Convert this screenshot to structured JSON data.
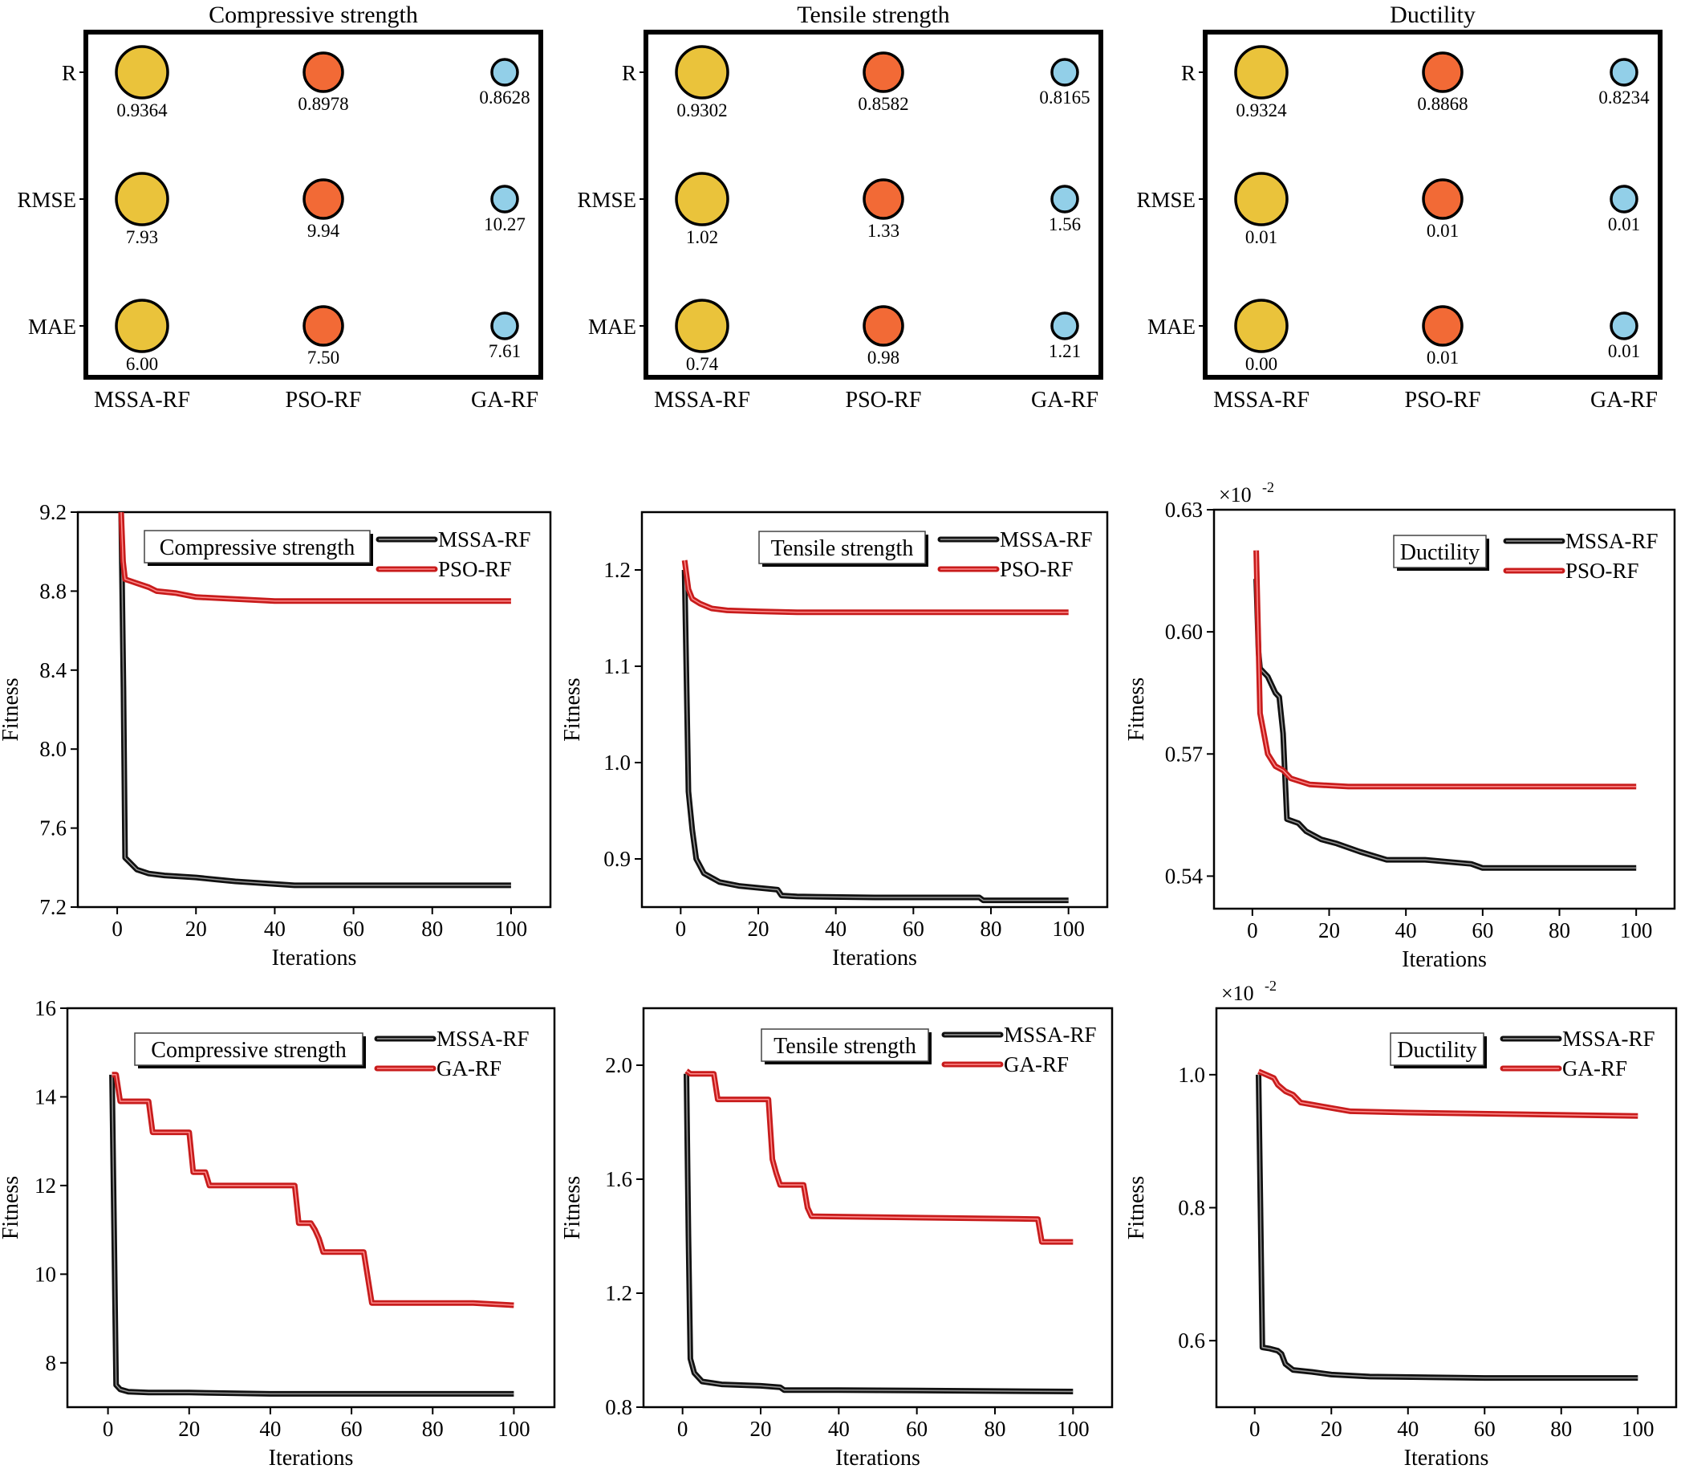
{
  "colors": {
    "mssa": "#EAC33B",
    "pso": "#F26A36",
    "ga": "#92CFE8",
    "black_line": "#000000",
    "red_line": "#D42020"
  },
  "chart_data": [
    {
      "type": "bubble",
      "title": "Compressive strength",
      "rows": [
        "R",
        "RMSE",
        "MAE"
      ],
      "columns": [
        "MSSA-RF",
        "PSO-RF",
        "GA-RF"
      ],
      "labels": [
        [
          "0.9364",
          "0.8978",
          "0.8628"
        ],
        [
          "7.93",
          "9.94",
          "10.27"
        ],
        [
          "6.00",
          "7.50",
          "7.61"
        ]
      ]
    },
    {
      "type": "bubble",
      "title": "Tensile strength",
      "rows": [
        "R",
        "RMSE",
        "MAE"
      ],
      "columns": [
        "MSSA-RF",
        "PSO-RF",
        "GA-RF"
      ],
      "labels": [
        [
          "0.9302",
          "0.8582",
          "0.8165"
        ],
        [
          "1.02",
          "1.33",
          "1.56"
        ],
        [
          "0.74",
          "0.98",
          "1.21"
        ]
      ]
    },
    {
      "type": "bubble",
      "title": "Ductility",
      "rows": [
        "R",
        "RMSE",
        "MAE"
      ],
      "columns": [
        "MSSA-RF",
        "PSO-RF",
        "GA-RF"
      ],
      "labels": [
        [
          "0.9324",
          "0.8868",
          "0.8234"
        ],
        [
          "0.01",
          "0.01",
          "0.01"
        ],
        [
          "0.00",
          "0.01",
          "0.01"
        ]
      ]
    },
    {
      "type": "line",
      "box_label": "Compressive strength",
      "xlabel": "Iterations",
      "ylabel": "Fitness",
      "xlim": [
        -10,
        110
      ],
      "ylim": [
        7.2,
        9.2
      ],
      "xticks": [
        0,
        20,
        40,
        60,
        80,
        100
      ],
      "yticks": [
        7.2,
        7.6,
        8.0,
        8.4,
        8.8,
        9.2
      ],
      "series": [
        {
          "name": "MSSA-RF",
          "color": "black",
          "x": [
            1,
            1.6,
            2,
            3,
            5,
            8,
            12,
            20,
            25,
            30,
            45,
            100
          ],
          "y": [
            9.2,
            8.3,
            7.45,
            7.43,
            7.39,
            7.37,
            7.36,
            7.35,
            7.34,
            7.33,
            7.31,
            7.31
          ]
        },
        {
          "name": "PSO-RF",
          "color": "red",
          "x": [
            1,
            1.5,
            2,
            5,
            8,
            10,
            15,
            20,
            30,
            40,
            100
          ],
          "y": [
            9.2,
            8.95,
            8.86,
            8.84,
            8.82,
            8.8,
            8.79,
            8.77,
            8.76,
            8.75,
            8.75
          ]
        }
      ]
    },
    {
      "type": "line",
      "box_label": "Tensile strength",
      "xlabel": "Iterations",
      "ylabel": "Fitness",
      "xlim": [
        -10,
        110
      ],
      "ylim": [
        0.85,
        1.26
      ],
      "xticks": [
        0,
        20,
        40,
        60,
        80,
        100
      ],
      "yticks": [
        0.9,
        1.0,
        1.1,
        1.2
      ],
      "series": [
        {
          "name": "MSSA-RF",
          "color": "black",
          "x": [
            1,
            2,
            3,
            4,
            6,
            10,
            15,
            25,
            26,
            30,
            50,
            77,
            78,
            100
          ],
          "y": [
            1.2,
            0.97,
            0.93,
            0.9,
            0.885,
            0.876,
            0.872,
            0.868,
            0.862,
            0.861,
            0.86,
            0.86,
            0.857,
            0.857
          ]
        },
        {
          "name": "PSO-RF",
          "color": "red",
          "x": [
            1,
            2,
            3,
            5,
            8,
            12,
            20,
            30,
            100
          ],
          "y": [
            1.21,
            1.18,
            1.17,
            1.165,
            1.16,
            1.158,
            1.157,
            1.156,
            1.156
          ]
        }
      ]
    },
    {
      "type": "line",
      "box_label": "Ductility",
      "xlabel": "Iterations",
      "ylabel": "Fitness",
      "exponent_label": "×10",
      "exponent_power": "-2",
      "xlim": [
        -10,
        110
      ],
      "ylim": [
        0.532,
        0.63
      ],
      "xticks": [
        0,
        20,
        40,
        60,
        80,
        100
      ],
      "yticks": [
        0.54,
        0.57,
        0.6,
        0.63
      ],
      "series": [
        {
          "name": "MSSA-RF",
          "color": "black",
          "x": [
            1,
            1.6,
            2,
            4,
            6,
            7,
            8,
            9,
            12,
            14,
            18,
            22,
            28,
            35,
            45,
            57,
            60,
            100
          ],
          "y": [
            0.613,
            0.595,
            0.591,
            0.589,
            0.585,
            0.584,
            0.575,
            0.554,
            0.553,
            0.551,
            0.549,
            0.548,
            0.546,
            0.544,
            0.544,
            0.543,
            0.542,
            0.542
          ]
        },
        {
          "name": "PSO-RF",
          "color": "red",
          "x": [
            1,
            1.5,
            2,
            3,
            4,
            6,
            8,
            10,
            15,
            25,
            100
          ],
          "y": [
            0.62,
            0.6,
            0.58,
            0.575,
            0.57,
            0.567,
            0.566,
            0.564,
            0.5625,
            0.562,
            0.562
          ]
        }
      ]
    },
    {
      "type": "line",
      "box_label": "Compressive strength",
      "xlabel": "Iterations",
      "ylabel": "Fitness",
      "xlim": [
        -10,
        110
      ],
      "ylim": [
        7,
        16
      ],
      "xticks": [
        0,
        20,
        40,
        60,
        80,
        100
      ],
      "yticks": [
        8,
        10,
        12,
        14,
        16
      ],
      "series": [
        {
          "name": "MSSA-RF",
          "color": "black",
          "x": [
            1,
            1.5,
            2,
            3,
            5,
            10,
            20,
            40,
            100
          ],
          "y": [
            14.5,
            11.0,
            7.5,
            7.4,
            7.35,
            7.33,
            7.33,
            7.3,
            7.3
          ]
        },
        {
          "name": "GA-RF",
          "color": "red",
          "x": [
            1,
            2,
            3,
            10,
            11,
            20,
            21,
            24,
            25,
            46,
            47,
            50,
            51,
            52,
            53,
            63,
            65,
            90,
            100
          ],
          "y": [
            14.5,
            14.5,
            13.9,
            13.9,
            13.2,
            13.2,
            12.3,
            12.3,
            12.0,
            12.0,
            11.15,
            11.15,
            11.0,
            10.8,
            10.5,
            10.5,
            9.35,
            9.35,
            9.3
          ]
        }
      ]
    },
    {
      "type": "line",
      "box_label": "Tensile strength",
      "xlabel": "Iterations",
      "ylabel": "Fitness",
      "xlim": [
        -10,
        110
      ],
      "ylim": [
        0.8,
        2.2
      ],
      "xticks": [
        0,
        20,
        40,
        60,
        80,
        100
      ],
      "yticks": [
        0.8,
        1.2,
        1.6,
        2.0
      ],
      "series": [
        {
          "name": "MSSA-RF",
          "color": "black",
          "x": [
            1,
            1.5,
            2,
            3,
            5,
            10,
            20,
            25,
            26,
            40,
            100
          ],
          "y": [
            1.97,
            1.4,
            0.97,
            0.92,
            0.89,
            0.88,
            0.875,
            0.87,
            0.86,
            0.86,
            0.855
          ]
        },
        {
          "name": "GA-RF",
          "color": "red",
          "x": [
            1,
            2,
            8,
            9,
            22,
            23,
            24,
            25,
            31,
            32,
            33,
            91,
            92,
            100
          ],
          "y": [
            1.98,
            1.97,
            1.97,
            1.88,
            1.88,
            1.67,
            1.62,
            1.58,
            1.58,
            1.5,
            1.47,
            1.46,
            1.38,
            1.38
          ]
        }
      ]
    },
    {
      "type": "line",
      "box_label": "Ductility",
      "xlabel": "Iterations",
      "ylabel": "Fitness",
      "exponent_label": "×10",
      "exponent_power": "-2",
      "xlim": [
        -10,
        110
      ],
      "ylim": [
        0.5,
        1.1
      ],
      "xticks": [
        0,
        20,
        40,
        60,
        80,
        100
      ],
      "yticks": [
        0.6,
        0.8,
        1.0
      ],
      "series": [
        {
          "name": "MSSA-RF",
          "color": "black",
          "x": [
            1,
            1.5,
            2,
            4,
            6,
            7,
            8,
            10,
            15,
            20,
            30,
            60,
            100
          ],
          "y": [
            1.0,
            0.8,
            0.59,
            0.588,
            0.585,
            0.58,
            0.565,
            0.556,
            0.553,
            0.549,
            0.546,
            0.544,
            0.544
          ]
        },
        {
          "name": "GA-RF",
          "color": "red",
          "x": [
            1,
            3,
            5,
            6,
            8,
            10,
            12,
            15,
            20,
            25,
            40,
            100
          ],
          "y": [
            1.005,
            1.0,
            0.995,
            0.985,
            0.975,
            0.97,
            0.958,
            0.955,
            0.95,
            0.945,
            0.943,
            0.938
          ]
        }
      ]
    }
  ]
}
